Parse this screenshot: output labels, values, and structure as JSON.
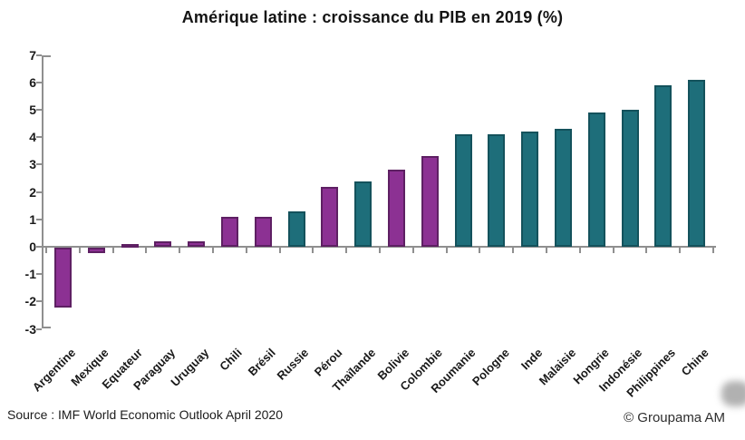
{
  "title": "Amérique latine : croissance du PIB en 2019 (%)",
  "source": "Source : IMF World Economic Outlook April 2020",
  "copyright": "© Groupama AM",
  "colors": {
    "latam_fill": "#8c3193",
    "latam_border": "#5e2063",
    "other_fill": "#1e6e7a",
    "other_border": "#14525c",
    "axis": "#8f8f8f",
    "text": "#1a1a1a"
  },
  "chart_data": {
    "type": "bar",
    "title": "Amérique latine : croissance du PIB en 2019 (%)",
    "categories": [
      "Argentine",
      "Mexique",
      "Equateur",
      "Paraguay",
      "Uruguay",
      "Chili",
      "Brésil",
      "Russie",
      "Pérou",
      "Thaïlande",
      "Bolivie",
      "Colombie",
      "Roumanie",
      "Pologne",
      "Inde",
      "Malaisie",
      "Hongrie",
      "Indonésie",
      "Philippines",
      "Chine"
    ],
    "values": [
      -2.2,
      -0.2,
      0.1,
      0.2,
      0.2,
      1.1,
      1.1,
      1.3,
      2.2,
      2.4,
      2.8,
      3.3,
      4.1,
      4.1,
      4.2,
      4.3,
      4.9,
      5.0,
      5.9,
      6.1
    ],
    "groups": [
      "latam",
      "latam",
      "latam",
      "latam",
      "latam",
      "latam",
      "latam",
      "other",
      "latam",
      "other",
      "latam",
      "latam",
      "other",
      "other",
      "other",
      "other",
      "other",
      "other",
      "other",
      "other"
    ],
    "ylabel": "",
    "xlabel": "",
    "ylim": [
      -3,
      7
    ],
    "yticks": [
      7,
      6,
      5,
      4,
      3,
      2,
      1,
      0,
      -1,
      -2,
      -3
    ],
    "grid": false,
    "legend": "none",
    "bar_orientation": "vertical",
    "xlabel_rotation_deg": -45
  }
}
